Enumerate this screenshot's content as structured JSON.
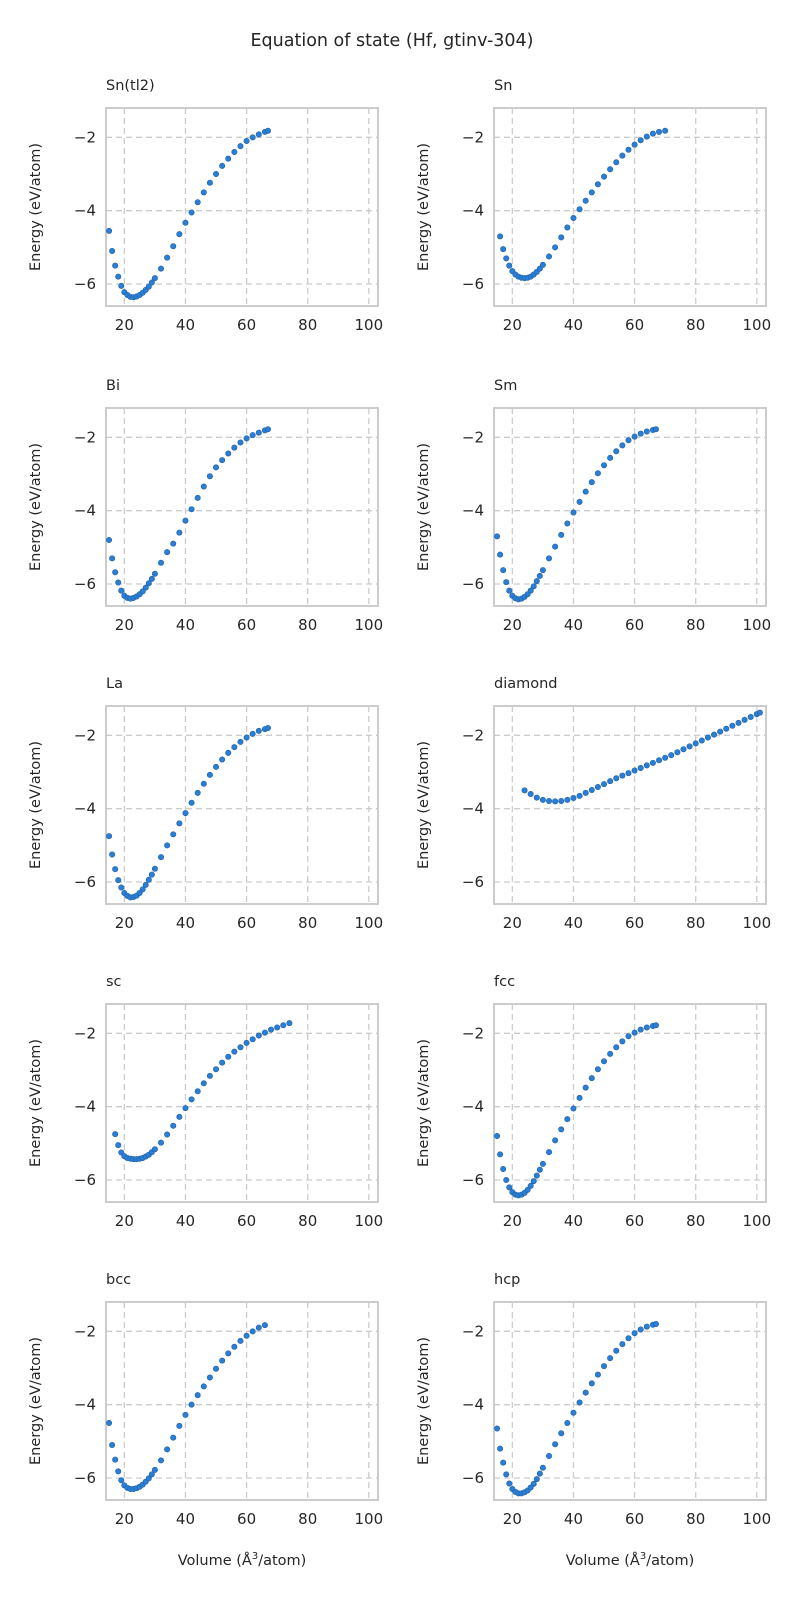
{
  "figure": {
    "title": "Equation of state (Hf, gtinv-304)",
    "xlabel_main": "Volume (Å",
    "xlabel_sup": "3",
    "xlabel_tail": "/atom)",
    "ylabel": "Energy (eV/atom)",
    "marker_color": "#2a7fd4",
    "marker_edge": "#1f5fa8",
    "grid_color": "#cccccc",
    "spine_color": "#cccccc"
  },
  "chart_data": [
    {
      "type": "scatter",
      "title": "Sn(tl2)",
      "xlim": [
        14,
        103
      ],
      "ylim": [
        -6.6,
        -1.2
      ],
      "xticks": [
        20,
        40,
        60,
        80,
        100
      ],
      "yticks": [
        -2,
        -4,
        -6
      ],
      "grid": true,
      "x": [
        15,
        16,
        17,
        18,
        19,
        20,
        21,
        22,
        23,
        24,
        25,
        26,
        27,
        28,
        29,
        30,
        32,
        34,
        36,
        38,
        40,
        42,
        44,
        46,
        48,
        50,
        52,
        54,
        56,
        58,
        60,
        62,
        64,
        66,
        67
      ],
      "y": [
        -4.55,
        -5.1,
        -5.5,
        -5.8,
        -6.05,
        -6.22,
        -6.3,
        -6.35,
        -6.36,
        -6.34,
        -6.3,
        -6.24,
        -6.16,
        -6.07,
        -5.96,
        -5.84,
        -5.58,
        -5.28,
        -4.97,
        -4.64,
        -4.33,
        -4.05,
        -3.77,
        -3.5,
        -3.24,
        -3.0,
        -2.78,
        -2.58,
        -2.4,
        -2.24,
        -2.1,
        -2.0,
        -1.92,
        -1.85,
        -1.82
      ]
    },
    {
      "type": "scatter",
      "title": "Sn",
      "xlim": [
        14,
        103
      ],
      "ylim": [
        -6.6,
        -1.2
      ],
      "xticks": [
        20,
        40,
        60,
        80,
        100
      ],
      "yticks": [
        -2,
        -4,
        -6
      ],
      "grid": true,
      "x": [
        16,
        17,
        18,
        19,
        20,
        21,
        22,
        23,
        24,
        25,
        26,
        27,
        28,
        29,
        30,
        32,
        34,
        36,
        38,
        40,
        42,
        44,
        46,
        48,
        50,
        52,
        54,
        56,
        58,
        60,
        62,
        64,
        66,
        68,
        70
      ],
      "y": [
        -4.7,
        -5.05,
        -5.3,
        -5.5,
        -5.65,
        -5.74,
        -5.8,
        -5.83,
        -5.84,
        -5.83,
        -5.8,
        -5.74,
        -5.67,
        -5.58,
        -5.48,
        -5.25,
        -5.0,
        -4.73,
        -4.46,
        -4.2,
        -3.96,
        -3.73,
        -3.5,
        -3.28,
        -3.07,
        -2.87,
        -2.68,
        -2.5,
        -2.34,
        -2.2,
        -2.08,
        -1.98,
        -1.9,
        -1.85,
        -1.82
      ]
    },
    {
      "type": "scatter",
      "title": "Bi",
      "xlim": [
        14,
        103
      ],
      "ylim": [
        -6.6,
        -1.2
      ],
      "xticks": [
        20,
        40,
        60,
        80,
        100
      ],
      "yticks": [
        -2,
        -4,
        -6
      ],
      "grid": true,
      "x": [
        15,
        16,
        17,
        18,
        19,
        20,
        21,
        22,
        23,
        24,
        25,
        26,
        27,
        28,
        29,
        30,
        32,
        34,
        36,
        38,
        40,
        42,
        44,
        46,
        48,
        50,
        52,
        54,
        56,
        58,
        60,
        62,
        64,
        66,
        67
      ],
      "y": [
        -4.8,
        -5.3,
        -5.68,
        -5.96,
        -6.18,
        -6.32,
        -6.38,
        -6.4,
        -6.38,
        -6.34,
        -6.28,
        -6.2,
        -6.1,
        -5.98,
        -5.86,
        -5.72,
        -5.42,
        -5.13,
        -4.9,
        -4.6,
        -4.27,
        -3.96,
        -3.65,
        -3.34,
        -3.06,
        -2.82,
        -2.62,
        -2.44,
        -2.28,
        -2.14,
        -2.03,
        -1.94,
        -1.87,
        -1.81,
        -1.78
      ]
    },
    {
      "type": "scatter",
      "title": "Sm",
      "xlim": [
        14,
        103
      ],
      "ylim": [
        -6.6,
        -1.2
      ],
      "xticks": [
        20,
        40,
        60,
        80,
        100
      ],
      "yticks": [
        -2,
        -4,
        -6
      ],
      "grid": true,
      "x": [
        15,
        16,
        17,
        18,
        19,
        20,
        21,
        22,
        23,
        24,
        25,
        26,
        27,
        28,
        29,
        30,
        32,
        34,
        36,
        38,
        40,
        42,
        44,
        46,
        48,
        50,
        52,
        54,
        56,
        58,
        60,
        62,
        64,
        66,
        67
      ],
      "y": [
        -4.7,
        -5.2,
        -5.62,
        -5.95,
        -6.18,
        -6.32,
        -6.39,
        -6.42,
        -6.4,
        -6.35,
        -6.28,
        -6.18,
        -6.06,
        -5.92,
        -5.78,
        -5.62,
        -5.3,
        -4.98,
        -4.66,
        -4.35,
        -4.05,
        -3.76,
        -3.48,
        -3.22,
        -2.98,
        -2.76,
        -2.56,
        -2.38,
        -2.22,
        -2.08,
        -1.98,
        -1.9,
        -1.84,
        -1.8,
        -1.78
      ]
    },
    {
      "type": "scatter",
      "title": "La",
      "xlim": [
        14,
        103
      ],
      "ylim": [
        -6.6,
        -1.2
      ],
      "xticks": [
        20,
        40,
        60,
        80,
        100
      ],
      "yticks": [
        -2,
        -4,
        -6
      ],
      "grid": true,
      "x": [
        15,
        16,
        17,
        18,
        19,
        20,
        21,
        22,
        23,
        24,
        25,
        26,
        27,
        28,
        29,
        30,
        32,
        34,
        36,
        38,
        40,
        42,
        44,
        46,
        48,
        50,
        52,
        54,
        56,
        58,
        60,
        62,
        64,
        66,
        67
      ],
      "y": [
        -4.75,
        -5.25,
        -5.65,
        -5.95,
        -6.15,
        -6.3,
        -6.38,
        -6.42,
        -6.41,
        -6.37,
        -6.3,
        -6.2,
        -6.08,
        -5.94,
        -5.8,
        -5.64,
        -5.32,
        -5.0,
        -4.7,
        -4.4,
        -4.12,
        -3.84,
        -3.57,
        -3.32,
        -3.08,
        -2.86,
        -2.66,
        -2.48,
        -2.32,
        -2.18,
        -2.06,
        -1.96,
        -1.88,
        -1.83,
        -1.8
      ]
    },
    {
      "type": "scatter",
      "title": "diamond",
      "xlim": [
        14,
        103
      ],
      "ylim": [
        -6.6,
        -1.2
      ],
      "xticks": [
        20,
        40,
        60,
        80,
        100
      ],
      "yticks": [
        -2,
        -4,
        -6
      ],
      "grid": true,
      "x": [
        24,
        26,
        28,
        30,
        32,
        34,
        36,
        38,
        40,
        42,
        44,
        46,
        48,
        50,
        52,
        54,
        56,
        58,
        60,
        62,
        64,
        66,
        68,
        70,
        72,
        74,
        76,
        78,
        80,
        82,
        84,
        86,
        88,
        90,
        92,
        94,
        96,
        98,
        100,
        101
      ],
      "y": [
        -3.5,
        -3.6,
        -3.7,
        -3.76,
        -3.79,
        -3.8,
        -3.79,
        -3.76,
        -3.71,
        -3.65,
        -3.57,
        -3.49,
        -3.41,
        -3.33,
        -3.25,
        -3.17,
        -3.1,
        -3.03,
        -2.96,
        -2.89,
        -2.82,
        -2.75,
        -2.68,
        -2.61,
        -2.54,
        -2.46,
        -2.38,
        -2.3,
        -2.22,
        -2.14,
        -2.06,
        -1.98,
        -1.9,
        -1.82,
        -1.74,
        -1.66,
        -1.58,
        -1.5,
        -1.42,
        -1.38
      ]
    },
    {
      "type": "scatter",
      "title": "sc",
      "xlim": [
        14,
        103
      ],
      "ylim": [
        -6.6,
        -1.2
      ],
      "xticks": [
        20,
        40,
        60,
        80,
        100
      ],
      "yticks": [
        -2,
        -4,
        -6
      ],
      "grid": true,
      "x": [
        17,
        18,
        19,
        20,
        21,
        22,
        23,
        24,
        25,
        26,
        27,
        28,
        29,
        30,
        32,
        34,
        36,
        38,
        40,
        42,
        44,
        46,
        48,
        50,
        52,
        54,
        56,
        58,
        60,
        62,
        64,
        66,
        68,
        70,
        72,
        74
      ],
      "y": [
        -4.75,
        -5.05,
        -5.25,
        -5.35,
        -5.4,
        -5.42,
        -5.43,
        -5.43,
        -5.42,
        -5.4,
        -5.36,
        -5.31,
        -5.24,
        -5.16,
        -4.98,
        -4.76,
        -4.52,
        -4.28,
        -4.04,
        -3.8,
        -3.58,
        -3.36,
        -3.16,
        -2.98,
        -2.8,
        -2.64,
        -2.5,
        -2.38,
        -2.26,
        -2.16,
        -2.06,
        -1.98,
        -1.9,
        -1.84,
        -1.78,
        -1.72
      ]
    },
    {
      "type": "scatter",
      "title": "fcc",
      "xlim": [
        14,
        103
      ],
      "ylim": [
        -6.6,
        -1.2
      ],
      "xticks": [
        20,
        40,
        60,
        80,
        100
      ],
      "yticks": [
        -2,
        -4,
        -6
      ],
      "grid": true,
      "x": [
        15,
        16,
        17,
        18,
        19,
        20,
        21,
        22,
        23,
        24,
        25,
        26,
        27,
        28,
        29,
        30,
        32,
        34,
        36,
        38,
        40,
        42,
        44,
        46,
        48,
        50,
        52,
        54,
        56,
        58,
        60,
        62,
        64,
        66,
        67
      ],
      "y": [
        -4.8,
        -5.3,
        -5.7,
        -6.0,
        -6.2,
        -6.33,
        -6.4,
        -6.42,
        -6.4,
        -6.35,
        -6.27,
        -6.16,
        -6.03,
        -5.88,
        -5.72,
        -5.56,
        -5.24,
        -4.92,
        -4.62,
        -4.34,
        -4.05,
        -3.76,
        -3.48,
        -3.22,
        -2.98,
        -2.76,
        -2.56,
        -2.38,
        -2.22,
        -2.08,
        -1.98,
        -1.9,
        -1.84,
        -1.8,
        -1.78
      ]
    },
    {
      "type": "scatter",
      "title": "bcc",
      "xlim": [
        14,
        103
      ],
      "ylim": [
        -6.6,
        -1.2
      ],
      "xticks": [
        20,
        40,
        60,
        80,
        100
      ],
      "yticks": [
        -2,
        -4,
        -6
      ],
      "grid": true,
      "x": [
        15,
        16,
        17,
        18,
        19,
        20,
        21,
        22,
        23,
        24,
        25,
        26,
        27,
        28,
        29,
        30,
        32,
        34,
        36,
        38,
        40,
        42,
        44,
        46,
        48,
        50,
        52,
        54,
        56,
        58,
        60,
        62,
        64,
        66
      ],
      "y": [
        -4.5,
        -5.1,
        -5.5,
        -5.82,
        -6.06,
        -6.2,
        -6.27,
        -6.3,
        -6.3,
        -6.28,
        -6.24,
        -6.18,
        -6.1,
        -6.01,
        -5.9,
        -5.78,
        -5.52,
        -5.22,
        -4.9,
        -4.58,
        -4.28,
        -4.0,
        -3.74,
        -3.5,
        -3.26,
        -3.02,
        -2.8,
        -2.6,
        -2.42,
        -2.26,
        -2.12,
        -2.0,
        -1.9,
        -1.83
      ]
    },
    {
      "type": "scatter",
      "title": "hcp",
      "xlim": [
        14,
        103
      ],
      "ylim": [
        -6.6,
        -1.2
      ],
      "xticks": [
        20,
        40,
        60,
        80,
        100
      ],
      "yticks": [
        -2,
        -4,
        -6
      ],
      "grid": true,
      "x": [
        15,
        16,
        17,
        18,
        19,
        20,
        21,
        22,
        23,
        24,
        25,
        26,
        27,
        28,
        29,
        30,
        32,
        34,
        36,
        38,
        40,
        42,
        44,
        46,
        48,
        50,
        52,
        54,
        56,
        58,
        60,
        62,
        64,
        66,
        67
      ],
      "y": [
        -4.65,
        -5.2,
        -5.58,
        -5.9,
        -6.15,
        -6.3,
        -6.38,
        -6.42,
        -6.42,
        -6.39,
        -6.34,
        -6.26,
        -6.16,
        -6.03,
        -5.88,
        -5.72,
        -5.4,
        -5.08,
        -4.78,
        -4.5,
        -4.22,
        -3.94,
        -3.67,
        -3.42,
        -3.18,
        -2.95,
        -2.73,
        -2.53,
        -2.35,
        -2.19,
        -2.05,
        -1.95,
        -1.87,
        -1.82,
        -1.8
      ]
    }
  ]
}
